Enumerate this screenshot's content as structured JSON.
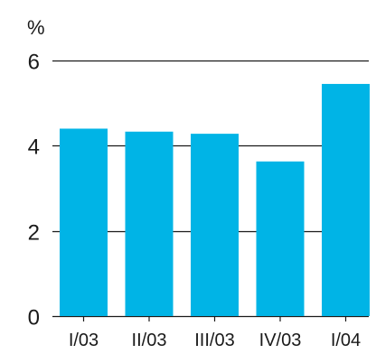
{
  "chart_data": {
    "type": "bar",
    "ylabel": "%",
    "categories": [
      "I/03",
      "II/03",
      "III/03",
      "IV/03",
      "I/04"
    ],
    "values": [
      4.4,
      4.33,
      4.28,
      3.63,
      5.45
    ],
    "ylim": [
      0,
      6
    ],
    "yticks": [
      "0",
      "2",
      "4",
      "6"
    ],
    "grid": true,
    "colors": {
      "bar": "#00b4e6",
      "grid": "#1a1a1a",
      "axis": "#1a1a1a"
    }
  }
}
